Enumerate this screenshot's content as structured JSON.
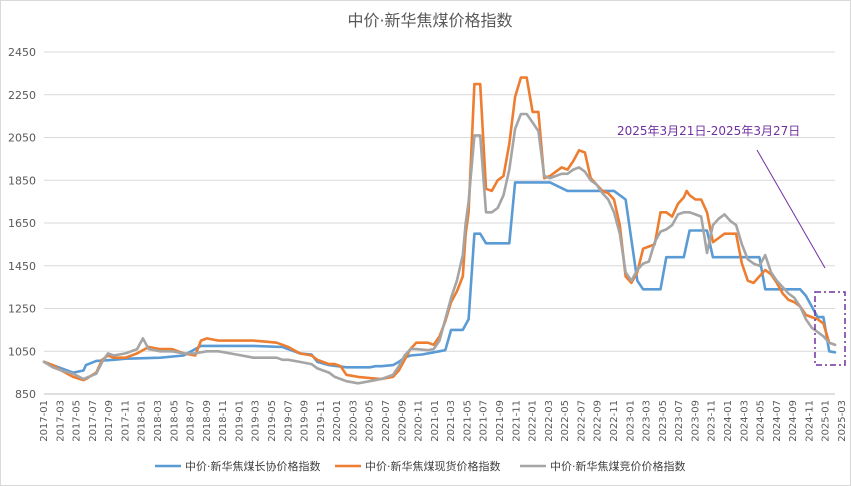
{
  "chart_data": {
    "type": "line",
    "title": "中价·新华焦煤价格指数",
    "xlabel": "",
    "ylabel": "",
    "ylim": [
      850,
      2450
    ],
    "yticks": [
      850,
      1050,
      1250,
      1450,
      1650,
      1850,
      2050,
      2250,
      2450
    ],
    "grid": "horizontal",
    "legend_position": "bottom",
    "x_tick_labels": [
      "2017-01",
      "2017-03",
      "2017-05",
      "2017-07",
      "2017-09",
      "2017-11",
      "2018-01",
      "2018-03",
      "2018-05",
      "2018-07",
      "2018-09",
      "2018-11",
      "2019-01",
      "2019-03",
      "2019-05",
      "2019-07",
      "2019-09",
      "2019-11",
      "2020-01",
      "2020-03",
      "2020-05",
      "2020-07",
      "2020-09",
      "2020-11",
      "2021-01",
      "2021-03",
      "2021-05",
      "2021-07",
      "2021-09",
      "2021-11",
      "2022-01",
      "2022-03",
      "2022-05",
      "2022-07",
      "2022-09",
      "2022-11",
      "2023-01",
      "2023-03",
      "2023-05",
      "2023-07",
      "2023-09",
      "2023-11",
      "2024-01",
      "2024-03",
      "2024-05",
      "2024-07",
      "2024-09",
      "2024-11",
      "2025-01",
      "2025-03"
    ],
    "series": [
      {
        "name": "中价·新华焦煤长协价格指数",
        "color": "#5b9bd5",
        "points": [
          [
            0,
            1000
          ],
          [
            1.5,
            985
          ],
          [
            3,
            970
          ],
          [
            5,
            950
          ],
          [
            6.8,
            960
          ],
          [
            7.2,
            985
          ],
          [
            9,
            1005
          ],
          [
            12,
            1010
          ],
          [
            14,
            1015
          ],
          [
            20,
            1020
          ],
          [
            24,
            1030
          ],
          [
            27,
            1075
          ],
          [
            36,
            1075
          ],
          [
            41,
            1070
          ],
          [
            42,
            1060
          ],
          [
            44,
            1040
          ],
          [
            46,
            1035
          ],
          [
            47,
            1000
          ],
          [
            49,
            985
          ],
          [
            52,
            975
          ],
          [
            54,
            975
          ],
          [
            56,
            975
          ],
          [
            57,
            980
          ],
          [
            58,
            980
          ],
          [
            60,
            985
          ],
          [
            61,
            1000
          ],
          [
            62,
            1020
          ],
          [
            63,
            1030
          ],
          [
            65,
            1035
          ],
          [
            67,
            1045
          ],
          [
            69,
            1055
          ],
          [
            70,
            1150
          ],
          [
            72,
            1150
          ],
          [
            73,
            1200
          ],
          [
            74,
            1600
          ],
          [
            75,
            1600
          ],
          [
            76,
            1555
          ],
          [
            80,
            1555
          ],
          [
            81,
            1840
          ],
          [
            87,
            1840
          ],
          [
            90,
            1800
          ],
          [
            98,
            1800
          ],
          [
            100,
            1760
          ],
          [
            102,
            1380
          ],
          [
            103,
            1340
          ],
          [
            106,
            1340
          ],
          [
            107,
            1490
          ],
          [
            110,
            1490
          ],
          [
            111,
            1615
          ],
          [
            114,
            1615
          ],
          [
            115,
            1490
          ],
          [
            123,
            1490
          ],
          [
            124,
            1340
          ],
          [
            126,
            1340
          ],
          [
            130,
            1340
          ],
          [
            131,
            1310
          ],
          [
            132,
            1260
          ],
          [
            133,
            1210
          ],
          [
            134,
            1210
          ],
          [
            135,
            1050
          ],
          [
            136,
            1045
          ]
        ]
      },
      {
        "name": "中价·新华焦煤现货价格指数",
        "color": "#ed7d31",
        "points": [
          [
            0,
            1000
          ],
          [
            1.5,
            985
          ],
          [
            3,
            960
          ],
          [
            5,
            930
          ],
          [
            6.8,
            915
          ],
          [
            7.2,
            920
          ],
          [
            9,
            950
          ],
          [
            10,
            1010
          ],
          [
            11,
            1030
          ],
          [
            12,
            1020
          ],
          [
            14,
            1020
          ],
          [
            16,
            1040
          ],
          [
            18,
            1070
          ],
          [
            20,
            1060
          ],
          [
            22,
            1060
          ],
          [
            24,
            1040
          ],
          [
            26,
            1030
          ],
          [
            27,
            1100
          ],
          [
            28,
            1110
          ],
          [
            30,
            1100
          ],
          [
            32,
            1100
          ],
          [
            36,
            1100
          ],
          [
            38,
            1095
          ],
          [
            40,
            1090
          ],
          [
            41,
            1080
          ],
          [
            42,
            1070
          ],
          [
            44,
            1040
          ],
          [
            46,
            1030
          ],
          [
            47,
            1010
          ],
          [
            49,
            990
          ],
          [
            50,
            990
          ],
          [
            51,
            980
          ],
          [
            52,
            940
          ],
          [
            54,
            930
          ],
          [
            56,
            925
          ],
          [
            58,
            920
          ],
          [
            60,
            930
          ],
          [
            61,
            960
          ],
          [
            62,
            1010
          ],
          [
            63,
            1060
          ],
          [
            64,
            1090
          ],
          [
            66,
            1090
          ],
          [
            67,
            1080
          ],
          [
            68,
            1120
          ],
          [
            69,
            1190
          ],
          [
            70,
            1280
          ],
          [
            71,
            1330
          ],
          [
            72,
            1400
          ],
          [
            72.5,
            1600
          ],
          [
            73,
            1700
          ],
          [
            74,
            2300
          ],
          [
            75,
            2300
          ],
          [
            76,
            1810
          ],
          [
            77,
            1800
          ],
          [
            78,
            1850
          ],
          [
            79,
            1870
          ],
          [
            80,
            2020
          ],
          [
            81,
            2240
          ],
          [
            82,
            2330
          ],
          [
            83,
            2330
          ],
          [
            84,
            2170
          ],
          [
            85,
            2170
          ],
          [
            86,
            1860
          ],
          [
            87,
            1870
          ],
          [
            88,
            1890
          ],
          [
            89,
            1910
          ],
          [
            90,
            1900
          ],
          [
            91,
            1940
          ],
          [
            92,
            1990
          ],
          [
            93,
            1980
          ],
          [
            94,
            1860
          ],
          [
            95,
            1830
          ],
          [
            96,
            1800
          ],
          [
            97,
            1790
          ],
          [
            98,
            1760
          ],
          [
            99,
            1640
          ],
          [
            100,
            1400
          ],
          [
            101,
            1370
          ],
          [
            102,
            1420
          ],
          [
            103,
            1530
          ],
          [
            104,
            1540
          ],
          [
            105,
            1550
          ],
          [
            106,
            1700
          ],
          [
            107,
            1700
          ],
          [
            108,
            1680
          ],
          [
            109,
            1740
          ],
          [
            110,
            1770
          ],
          [
            110.5,
            1800
          ],
          [
            111,
            1780
          ],
          [
            112,
            1760
          ],
          [
            113,
            1760
          ],
          [
            114,
            1700
          ],
          [
            115,
            1560
          ],
          [
            116,
            1580
          ],
          [
            117,
            1600
          ],
          [
            118,
            1600
          ],
          [
            119,
            1600
          ],
          [
            120,
            1460
          ],
          [
            121,
            1380
          ],
          [
            122,
            1370
          ],
          [
            123,
            1400
          ],
          [
            124,
            1430
          ],
          [
            125,
            1410
          ],
          [
            126,
            1370
          ],
          [
            127,
            1320
          ],
          [
            128,
            1290
          ],
          [
            129,
            1280
          ],
          [
            130,
            1260
          ],
          [
            131,
            1220
          ],
          [
            132,
            1210
          ],
          [
            133,
            1200
          ],
          [
            134,
            1180
          ],
          [
            135,
            1090
          ],
          [
            136,
            1080
          ]
        ]
      },
      {
        "name": "中价·新华焦煤竞价价格指数",
        "color": "#a5a5a5",
        "points": [
          [
            0,
            1000
          ],
          [
            1.5,
            975
          ],
          [
            3,
            960
          ],
          [
            5,
            945
          ],
          [
            6.8,
            920
          ],
          [
            7.2,
            925
          ],
          [
            9,
            945
          ],
          [
            10,
            1000
          ],
          [
            11,
            1040
          ],
          [
            12,
            1030
          ],
          [
            14,
            1040
          ],
          [
            15,
            1050
          ],
          [
            16,
            1060
          ],
          [
            17,
            1110
          ],
          [
            18,
            1060
          ],
          [
            20,
            1050
          ],
          [
            22,
            1050
          ],
          [
            24,
            1040
          ],
          [
            26,
            1040
          ],
          [
            28,
            1050
          ],
          [
            30,
            1050
          ],
          [
            32,
            1040
          ],
          [
            34,
            1030
          ],
          [
            36,
            1020
          ],
          [
            38,
            1020
          ],
          [
            40,
            1020
          ],
          [
            41,
            1010
          ],
          [
            42,
            1010
          ],
          [
            44,
            1000
          ],
          [
            46,
            990
          ],
          [
            47,
            970
          ],
          [
            49,
            950
          ],
          [
            50,
            930
          ],
          [
            51,
            920
          ],
          [
            52,
            910
          ],
          [
            54,
            900
          ],
          [
            56,
            910
          ],
          [
            58,
            920
          ],
          [
            60,
            940
          ],
          [
            61,
            980
          ],
          [
            62,
            1030
          ],
          [
            63,
            1060
          ],
          [
            64,
            1060
          ],
          [
            66,
            1055
          ],
          [
            67,
            1060
          ],
          [
            68,
            1100
          ],
          [
            69,
            1200
          ],
          [
            70,
            1300
          ],
          [
            71,
            1380
          ],
          [
            72,
            1500
          ],
          [
            72.5,
            1650
          ],
          [
            73,
            1750
          ],
          [
            74,
            2060
          ],
          [
            75,
            2060
          ],
          [
            76,
            1700
          ],
          [
            77,
            1700
          ],
          [
            78,
            1720
          ],
          [
            79,
            1780
          ],
          [
            80,
            1900
          ],
          [
            81,
            2090
          ],
          [
            82,
            2160
          ],
          [
            83,
            2160
          ],
          [
            84,
            2120
          ],
          [
            85,
            2080
          ],
          [
            86,
            1870
          ],
          [
            87,
            1860
          ],
          [
            88,
            1870
          ],
          [
            89,
            1880
          ],
          [
            90,
            1880
          ],
          [
            91,
            1900
          ],
          [
            92,
            1910
          ],
          [
            93,
            1890
          ],
          [
            94,
            1850
          ],
          [
            95,
            1830
          ],
          [
            96,
            1790
          ],
          [
            97,
            1760
          ],
          [
            98,
            1700
          ],
          [
            99,
            1600
          ],
          [
            100,
            1420
          ],
          [
            101,
            1380
          ],
          [
            102,
            1430
          ],
          [
            103,
            1460
          ],
          [
            104,
            1470
          ],
          [
            105,
            1560
          ],
          [
            106,
            1610
          ],
          [
            107,
            1620
          ],
          [
            108,
            1640
          ],
          [
            109,
            1690
          ],
          [
            110,
            1700
          ],
          [
            111,
            1700
          ],
          [
            112,
            1690
          ],
          [
            113,
            1680
          ],
          [
            114,
            1510
          ],
          [
            115,
            1640
          ],
          [
            116,
            1670
          ],
          [
            117,
            1690
          ],
          [
            118,
            1660
          ],
          [
            119,
            1640
          ],
          [
            120,
            1550
          ],
          [
            121,
            1480
          ],
          [
            122,
            1460
          ],
          [
            123,
            1450
          ],
          [
            124,
            1500
          ],
          [
            125,
            1420
          ],
          [
            126,
            1380
          ],
          [
            127,
            1350
          ],
          [
            128,
            1320
          ],
          [
            129,
            1300
          ],
          [
            130,
            1260
          ],
          [
            131,
            1200
          ],
          [
            132,
            1160
          ],
          [
            133,
            1140
          ],
          [
            134,
            1120
          ],
          [
            135,
            1090
          ],
          [
            136,
            1080
          ]
        ]
      }
    ],
    "annotation": {
      "text": "2025年3月21日-2025年3月27日"
    }
  },
  "colors": {
    "grid": "#d9d9d9",
    "axis": "#bfbfbf",
    "annotation": "#7030a0"
  }
}
